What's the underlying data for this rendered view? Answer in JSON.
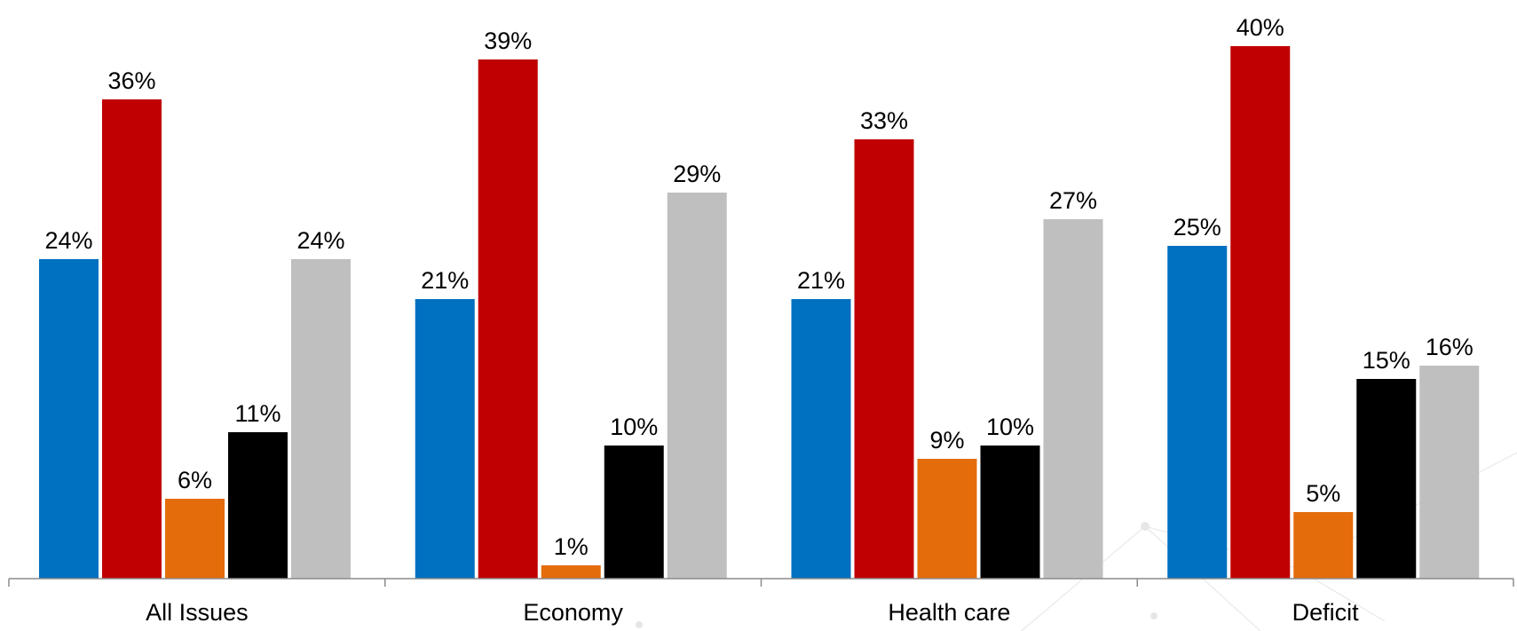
{
  "chart_data": {
    "type": "bar",
    "categories": [
      "All Issues",
      "Economy",
      "Health care",
      "Deficit"
    ],
    "series": [
      {
        "color": "#0070c0",
        "values": [
          24,
          21,
          21,
          25
        ],
        "labels": [
          "24%",
          "21%",
          "21%",
          "25%"
        ]
      },
      {
        "color": "#c00000",
        "values": [
          36,
          39,
          33,
          40
        ],
        "labels": [
          "36%",
          "39%",
          "33%",
          "40%"
        ]
      },
      {
        "color": "#e46c0a",
        "values": [
          6,
          1,
          9,
          5
        ],
        "labels": [
          "6%",
          "1%",
          "9%",
          "5%"
        ]
      },
      {
        "color": "#000000",
        "values": [
          11,
          10,
          10,
          15
        ],
        "labels": [
          "11%",
          "10%",
          "10%",
          "15%"
        ]
      },
      {
        "color": "#bfbfbf",
        "values": [
          24,
          29,
          27,
          16
        ],
        "labels": [
          "24%",
          "29%",
          "27%",
          "16%"
        ]
      }
    ],
    "title": "",
    "xlabel": "",
    "ylabel": "",
    "ylim": [
      0,
      40
    ],
    "grid": false,
    "legend": "none"
  }
}
